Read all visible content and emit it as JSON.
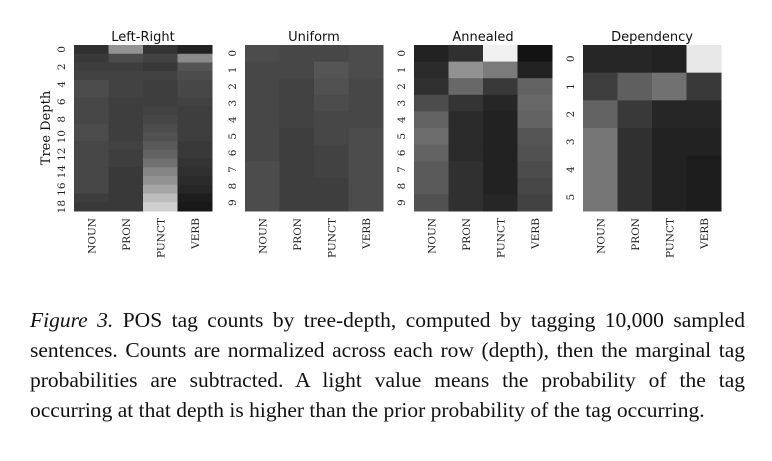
{
  "chart_data": {
    "type": "heatmap",
    "ylabel": "Tree Depth",
    "categories": [
      "NOUN",
      "PRON",
      "PUNCT",
      "VERB"
    ],
    "panels": [
      {
        "title": "Left-Right",
        "rows": [
          "0",
          "1",
          "2",
          "3",
          "4",
          "5",
          "6",
          "7",
          "8",
          "9",
          "10",
          "11",
          "12",
          "13",
          "14",
          "15",
          "16",
          "17",
          "18"
        ],
        "row_tick_labels": [
          "0",
          "2",
          "4",
          "6",
          "8",
          "10",
          "12",
          "14",
          "16",
          "18"
        ],
        "values": [
          [
            0.16,
            0.58,
            0.18,
            0.1
          ],
          [
            0.2,
            0.28,
            0.24,
            0.55
          ],
          [
            0.22,
            0.22,
            0.2,
            0.32
          ],
          [
            0.24,
            0.24,
            0.24,
            0.28
          ],
          [
            0.28,
            0.24,
            0.22,
            0.26
          ],
          [
            0.28,
            0.24,
            0.22,
            0.26
          ],
          [
            0.26,
            0.22,
            0.22,
            0.24
          ],
          [
            0.26,
            0.22,
            0.24,
            0.22
          ],
          [
            0.26,
            0.22,
            0.26,
            0.22
          ],
          [
            0.28,
            0.22,
            0.28,
            0.22
          ],
          [
            0.28,
            0.22,
            0.3,
            0.22
          ],
          [
            0.26,
            0.24,
            0.34,
            0.2
          ],
          [
            0.26,
            0.22,
            0.38,
            0.2
          ],
          [
            0.26,
            0.22,
            0.44,
            0.18
          ],
          [
            0.26,
            0.2,
            0.52,
            0.16
          ],
          [
            0.26,
            0.2,
            0.58,
            0.14
          ],
          [
            0.26,
            0.2,
            0.66,
            0.12
          ],
          [
            0.22,
            0.2,
            0.76,
            0.08
          ],
          [
            0.2,
            0.2,
            0.84,
            0.06
          ]
        ]
      },
      {
        "title": "Uniform",
        "rows": [
          "0",
          "1",
          "2",
          "3",
          "4",
          "5",
          "6",
          "7",
          "8",
          "9"
        ],
        "row_tick_labels": [
          "0",
          "1",
          "2",
          "3",
          "4",
          "5",
          "6",
          "7",
          "8",
          "9"
        ],
        "values": [
          [
            0.28,
            0.26,
            0.26,
            0.28
          ],
          [
            0.26,
            0.26,
            0.32,
            0.28
          ],
          [
            0.26,
            0.24,
            0.3,
            0.26
          ],
          [
            0.26,
            0.24,
            0.28,
            0.26
          ],
          [
            0.26,
            0.24,
            0.26,
            0.26
          ],
          [
            0.26,
            0.22,
            0.26,
            0.28
          ],
          [
            0.26,
            0.22,
            0.24,
            0.28
          ],
          [
            0.28,
            0.22,
            0.24,
            0.28
          ],
          [
            0.28,
            0.22,
            0.22,
            0.28
          ],
          [
            0.28,
            0.22,
            0.22,
            0.28
          ]
        ]
      },
      {
        "title": "Annealed",
        "rows": [
          "0",
          "1",
          "2",
          "3",
          "4",
          "5",
          "6",
          "7",
          "8",
          "9"
        ],
        "row_tick_labels": [
          "0",
          "1",
          "2",
          "3",
          "4",
          "5",
          "6",
          "7",
          "8",
          "9"
        ],
        "values": [
          [
            0.1,
            0.16,
            0.98,
            0.04
          ],
          [
            0.14,
            0.58,
            0.48,
            0.1
          ],
          [
            0.16,
            0.4,
            0.2,
            0.38
          ],
          [
            0.28,
            0.18,
            0.12,
            0.4
          ],
          [
            0.38,
            0.14,
            0.1,
            0.38
          ],
          [
            0.42,
            0.14,
            0.1,
            0.32
          ],
          [
            0.38,
            0.14,
            0.1,
            0.3
          ],
          [
            0.34,
            0.16,
            0.1,
            0.28
          ],
          [
            0.34,
            0.16,
            0.1,
            0.26
          ],
          [
            0.3,
            0.16,
            0.12,
            0.24
          ]
        ]
      },
      {
        "title": "Dependency",
        "rows": [
          "0",
          "1",
          "2",
          "3",
          "4",
          "5"
        ],
        "row_tick_labels": [
          "0",
          "1",
          "2",
          "3",
          "4",
          "5"
        ],
        "values": [
          [
            0.12,
            0.12,
            0.1,
            0.94
          ],
          [
            0.22,
            0.36,
            0.44,
            0.2
          ],
          [
            0.38,
            0.2,
            0.12,
            0.12
          ],
          [
            0.46,
            0.16,
            0.1,
            0.1
          ],
          [
            0.46,
            0.16,
            0.1,
            0.08
          ],
          [
            0.46,
            0.16,
            0.1,
            0.08
          ]
        ]
      }
    ]
  },
  "caption": {
    "label": "Figure 3.",
    "text": "POS tag counts by tree-depth, computed by tagging 10,000 sampled sentences. Counts are normalized across each row (depth), then the marginal tag probabilities are subtracted. A light value means the probability of the tag occurring at that depth is higher than the prior probability of the tag occurring."
  }
}
